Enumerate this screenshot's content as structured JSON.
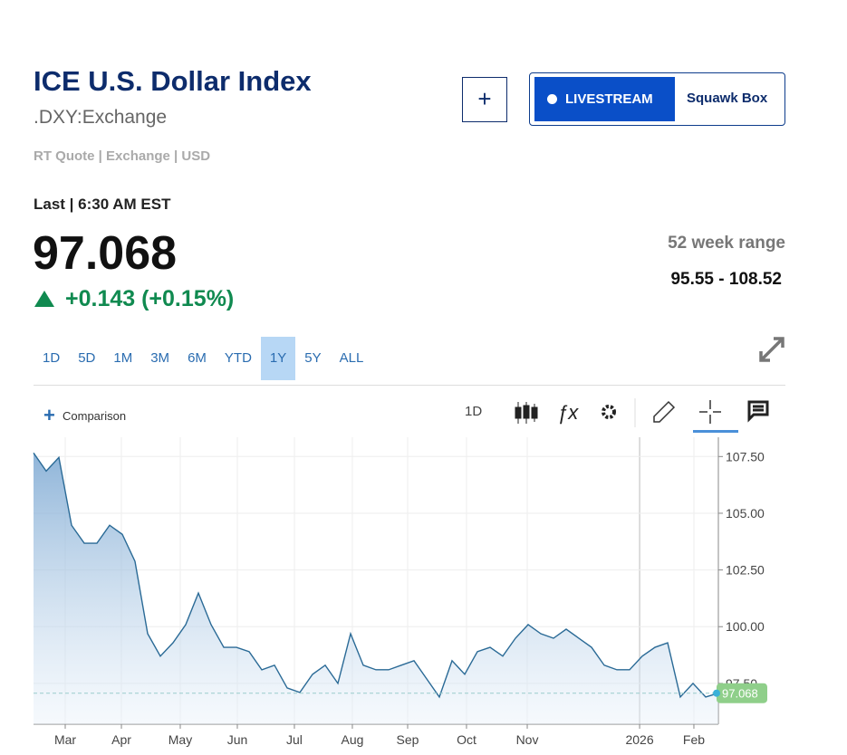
{
  "header": {
    "title": "ICE U.S. Dollar Index",
    "symbol": ".DXY:Exchange",
    "quote_info": "RT Quote | Exchange | USD",
    "buttons": [
      "+",
      "LIVESTREAM",
      "Squawk Box"
    ]
  },
  "quote": {
    "last_time": "Last | 6:30 AM EST",
    "last": "97.068",
    "change": "+0.143 (+0.15%)",
    "range_label": "52 week range",
    "range": "95.55 - 108.52"
  },
  "tabs": [
    "1D",
    "5D",
    "1M",
    "3M",
    "6M",
    "YTD",
    "1Y",
    "5Y",
    "ALL"
  ],
  "active_tab": 6,
  "toolbar": {
    "comparison": "Comparison",
    "interval": "1D"
  },
  "chart_data": {
    "type": "area-line",
    "series": [
      {
        "name": ".DXY",
        "color": "#2a6a96",
        "values": [
          107.66,
          106.86,
          107.46,
          104.47,
          103.68,
          103.68,
          104.47,
          104.07,
          102.88,
          99.69,
          98.7,
          99.29,
          100.09,
          101.48,
          100.09,
          99.09,
          99.09,
          98.9,
          98.1,
          98.3,
          97.3,
          97.1,
          97.9,
          98.3,
          97.5,
          99.69,
          98.3,
          98.1,
          98.1,
          98.3,
          98.5,
          97.7,
          96.9,
          98.5,
          97.9,
          98.9,
          99.09,
          98.7,
          99.49,
          100.09,
          99.69,
          99.49,
          99.89,
          99.49,
          99.09,
          98.3,
          98.1,
          98.1,
          98.7,
          99.09,
          99.29,
          96.9,
          97.5,
          96.9,
          97.068
        ]
      }
    ],
    "xlim": [
      0,
      54
    ],
    "xticks": [
      {
        "value": 2.5,
        "label": "Mar"
      },
      {
        "value": 6.93,
        "label": "Apr"
      },
      {
        "value": 11.57,
        "label": "May"
      },
      {
        "value": 16.07,
        "label": "Jun"
      },
      {
        "value": 20.57,
        "label": "Jul"
      },
      {
        "value": 25.14,
        "label": "Aug"
      },
      {
        "value": 29.5,
        "label": "Sep"
      },
      {
        "value": 34.14,
        "label": "Oct"
      },
      {
        "value": 38.93,
        "label": "Nov"
      },
      {
        "value": 47.79,
        "label": "2026"
      },
      {
        "value": 52.07,
        "label": "Feb"
      }
    ],
    "ylim": [
      95.7,
      108.35
    ],
    "yticks": [
      {
        "value": 97.5,
        "label": "97.50"
      },
      {
        "value": 100,
        "label": "100.00"
      },
      {
        "value": 102.5,
        "label": "102.50"
      },
      {
        "value": 105,
        "label": "105.00"
      },
      {
        "value": 107.5,
        "label": "107.50"
      }
    ],
    "grid": true
  }
}
